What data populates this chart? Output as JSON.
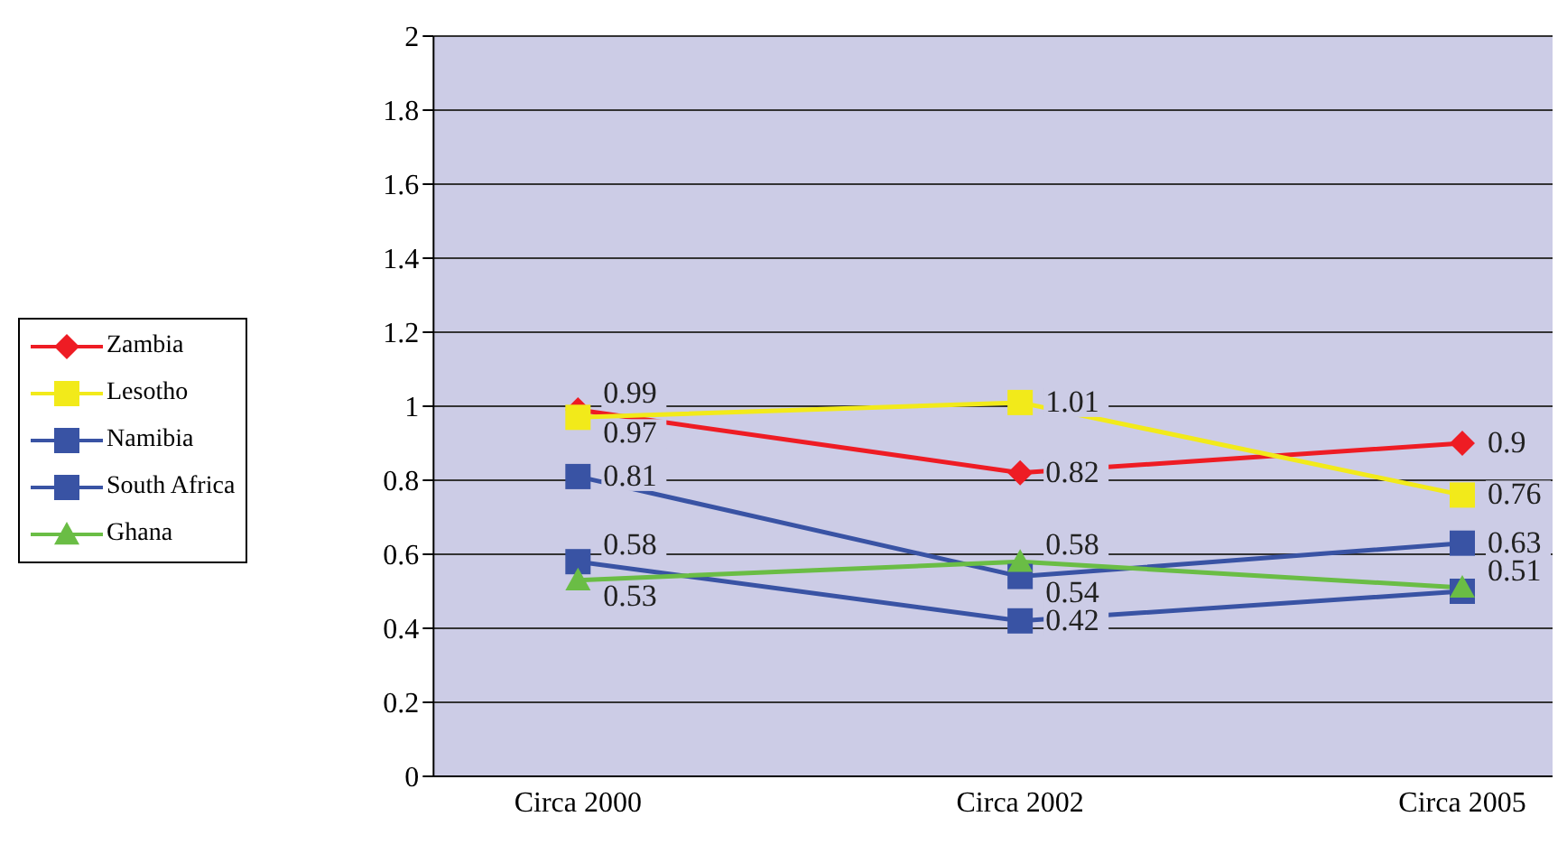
{
  "chart_data": {
    "type": "line",
    "categories": [
      "Circa 2000",
      "Circa 2002",
      "Circa 2005"
    ],
    "series": [
      {
        "name": "Zambia",
        "color": "#ee1c24",
        "marker": "diamond",
        "values": [
          0.99,
          0.82,
          0.9
        ],
        "value_labels": [
          "0.99",
          "0.82",
          "0.9"
        ]
      },
      {
        "name": "Lesotho",
        "color": "#f2ea1a",
        "marker": "square",
        "values": [
          0.97,
          1.01,
          0.76
        ],
        "value_labels": [
          "0.97",
          "1.01",
          "0.76"
        ]
      },
      {
        "name": "Namibia",
        "color": "#3953a4",
        "marker": "square",
        "values": [
          0.81,
          0.54,
          0.63
        ],
        "value_labels": [
          "0.81",
          "0.54",
          "0.63"
        ]
      },
      {
        "name": "South Africa",
        "color": "#3953a4",
        "marker": "square",
        "values": [
          0.58,
          0.42,
          0.5
        ],
        "value_labels": [
          "0.58",
          "0.42",
          null
        ]
      },
      {
        "name": "Ghana",
        "color": "#6abd45",
        "marker": "triangle",
        "values": [
          0.53,
          0.58,
          0.51
        ],
        "value_labels": [
          "0.53",
          "0.58",
          "0.51"
        ]
      }
    ],
    "ylim": [
      0,
      2
    ],
    "yticks": [
      0,
      0.2,
      0.4,
      0.6,
      0.8,
      1,
      1.2,
      1.4,
      1.6,
      1.8,
      2
    ],
    "grid": "y",
    "legend": "left"
  }
}
